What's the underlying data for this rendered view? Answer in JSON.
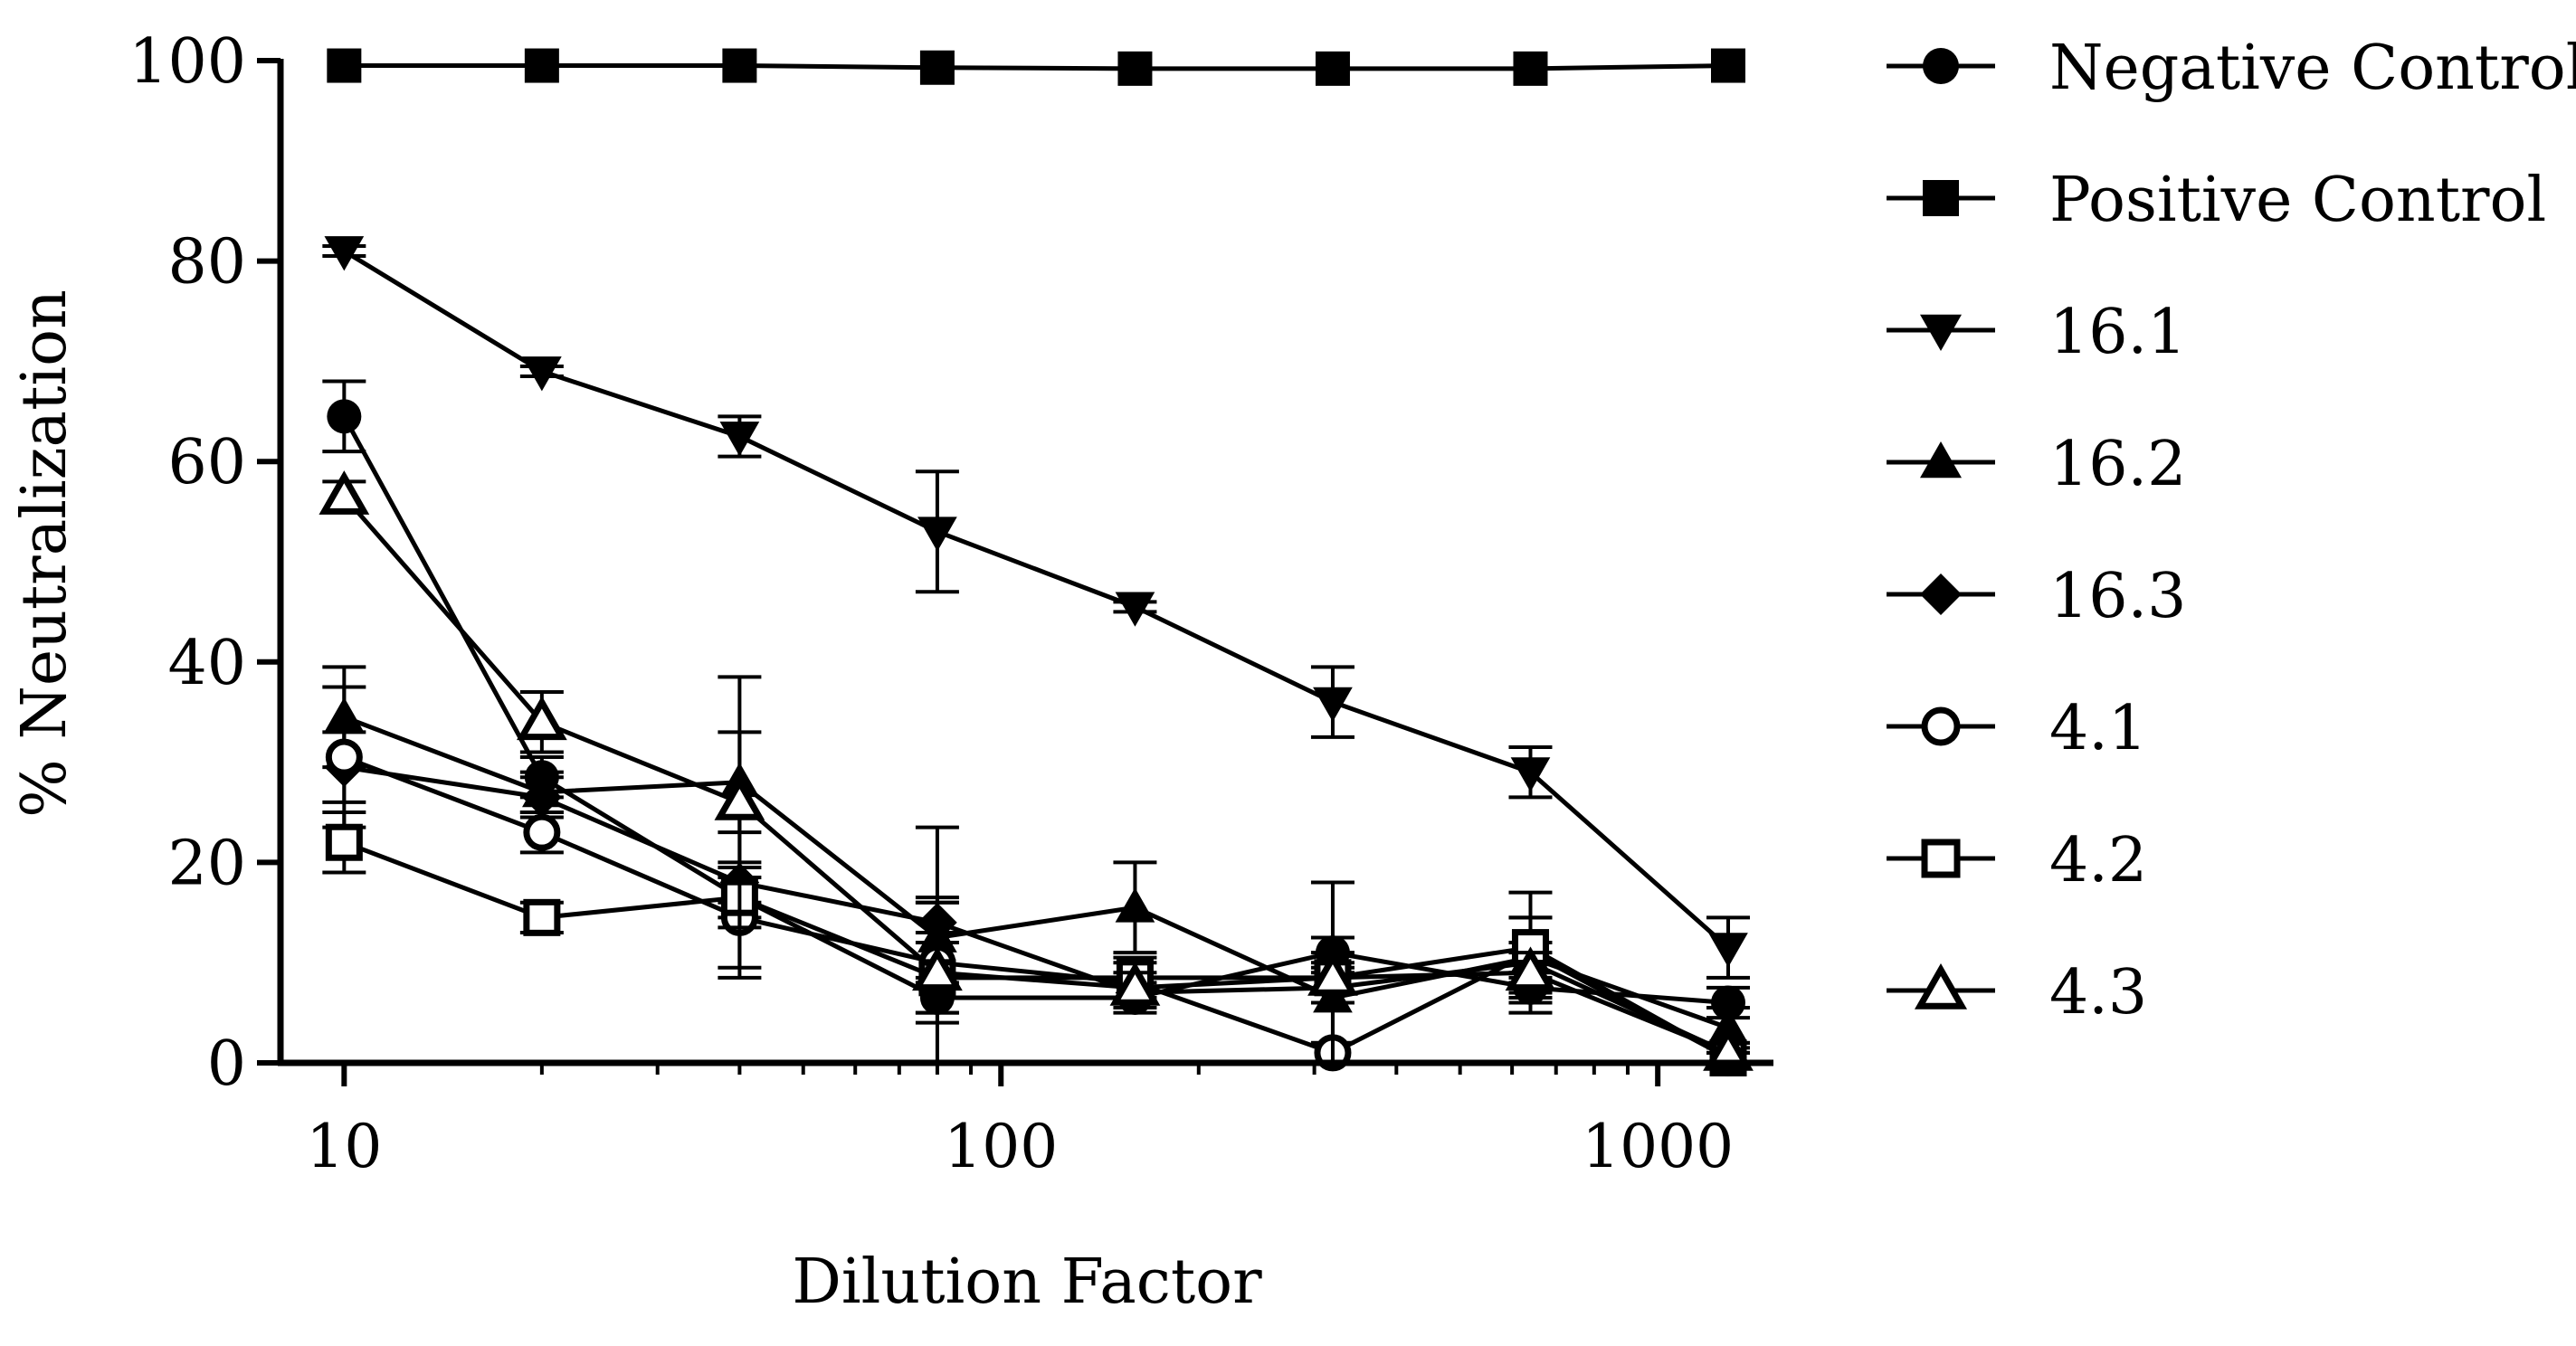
{
  "chart_data": {
    "type": "line",
    "title": "",
    "xlabel": "Dilution Factor",
    "ylabel": "% Neutralization",
    "xscale": "log10",
    "xlim": [
      8,
      1500
    ],
    "ylim": [
      0,
      100
    ],
    "xticks": [
      10,
      100,
      1000
    ],
    "yticks": [
      0,
      20,
      40,
      60,
      80,
      100
    ],
    "legend_position": "right",
    "x": [
      10,
      20,
      40,
      80,
      160,
      320,
      640,
      1280
    ],
    "series": [
      {
        "name": "Negative Control",
        "marker": "circle-filled",
        "values": [
          64.5,
          28.5,
          16.5,
          6.5,
          6.5,
          11.0,
          7.5,
          6.0
        ],
        "errors": [
          3.5,
          2.0,
          2.0,
          1.5,
          1.5,
          1.5,
          1.5,
          1.5
        ]
      },
      {
        "name": "Positive Control",
        "marker": "square-filled",
        "values": [
          99.5,
          99.5,
          99.5,
          99.3,
          99.2,
          99.2,
          99.2,
          99.5
        ],
        "errors": [
          0,
          0,
          0,
          0,
          0,
          0,
          0,
          0
        ]
      },
      {
        "name": "16.1",
        "marker": "triangle-down-filled",
        "values": [
          81.0,
          69.0,
          62.5,
          53.0,
          45.5,
          36.0,
          29.0,
          11.5
        ],
        "errors": [
          0.5,
          0.5,
          2.0,
          6.0,
          0.5,
          3.5,
          2.5,
          3.0
        ]
      },
      {
        "name": "16.2",
        "marker": "triangle-up-filled",
        "values": [
          34.5,
          27.0,
          28.0,
          12.5,
          15.5,
          6.5,
          10.5,
          3.5
        ],
        "errors": [
          5.0,
          2.0,
          5.0,
          4.0,
          4.5,
          4.5,
          4.0,
          2.0
        ]
      },
      {
        "name": "16.3",
        "marker": "diamond-filled",
        "values": [
          29.5,
          26.5,
          18.0,
          14.0,
          7.0,
          7.5,
          10.0,
          1.0
        ],
        "errors": [
          3.5,
          2.0,
          2.0,
          2.0,
          1.5,
          1.5,
          2.0,
          1.0
        ]
      },
      {
        "name": "4.1",
        "marker": "circle-open",
        "values": [
          30.5,
          23.0,
          14.5,
          10.0,
          8.0,
          1.0,
          11.0,
          0.5
        ],
        "errors": [
          7.0,
          2.0,
          5.0,
          6.0,
          2.0,
          1.0,
          6.0,
          0.5
        ]
      },
      {
        "name": "4.2",
        "marker": "square-open",
        "values": [
          22.0,
          14.5,
          16.5,
          8.5,
          8.5,
          8.5,
          11.5,
          0.5
        ],
        "errors": [
          3.0,
          1.5,
          8.0,
          15.0,
          2.0,
          9.5,
          3.0,
          0.5
        ]
      },
      {
        "name": "4.3",
        "marker": "triangle-up-open",
        "values": [
          56.5,
          34.0,
          26.0,
          9.0,
          7.5,
          8.5,
          9.0,
          1.0
        ],
        "errors": [
          1.5,
          3.0,
          12.5,
          4.0,
          1.5,
          1.5,
          2.0,
          1.0
        ]
      }
    ]
  }
}
